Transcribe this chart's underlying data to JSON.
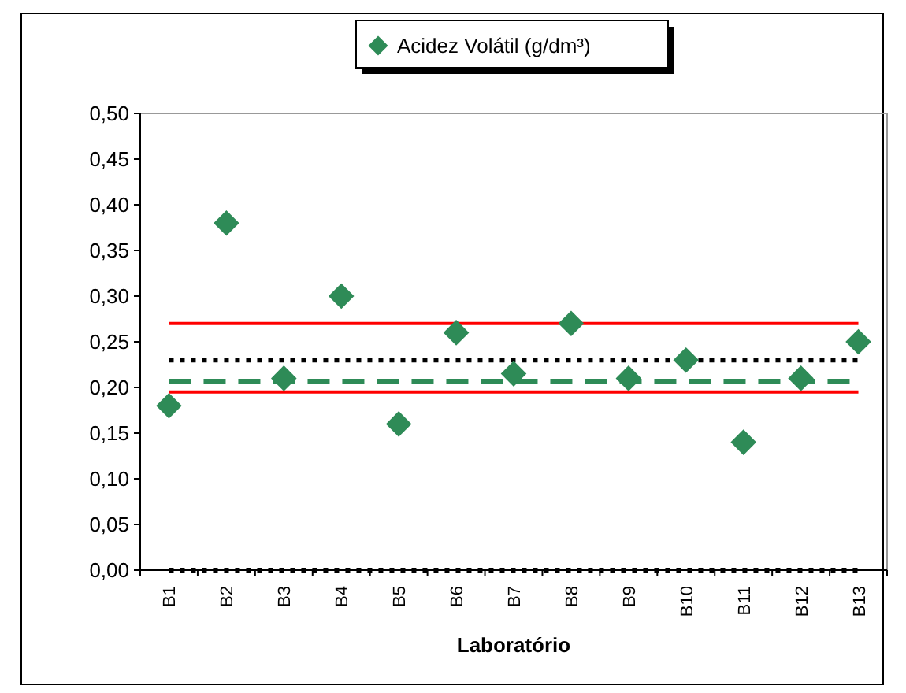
{
  "chart_data": {
    "type": "scatter",
    "xlabel": "Laboratório",
    "categories": [
      "B1",
      "B2",
      "B3",
      "B4",
      "B5",
      "B6",
      "B7",
      "B8",
      "B9",
      "B10",
      "B11",
      "B12",
      "B13"
    ],
    "series": [
      {
        "name": "Acidez Volátil (g/dm³)",
        "color": "#2e8b57",
        "values": [
          0.18,
          0.38,
          0.21,
          0.3,
          0.16,
          0.26,
          0.215,
          0.27,
          0.21,
          0.23,
          0.14,
          0.21,
          0.25
        ]
      }
    ],
    "ylim": [
      0,
      0.5
    ],
    "yticks": [
      {
        "value": 0,
        "label": "0,00"
      },
      {
        "value": 0.05,
        "label": "0,05"
      },
      {
        "value": 0.1,
        "label": "0,10"
      },
      {
        "value": 0.15,
        "label": "0,15"
      },
      {
        "value": 0.2,
        "label": "0,20"
      },
      {
        "value": 0.25,
        "label": "0,25"
      },
      {
        "value": 0.3,
        "label": "0,30"
      },
      {
        "value": 0.35,
        "label": "0,35"
      },
      {
        "value": 0.4,
        "label": "0,40"
      },
      {
        "value": 0.45,
        "label": "0,45"
      },
      {
        "value": 0.5,
        "label": "0,50"
      }
    ],
    "ref_lines": [
      {
        "axis": "y",
        "value": 0.27,
        "color": "#ff0000",
        "line_style": "solid"
      },
      {
        "axis": "y",
        "value": 0.195,
        "color": "#ff0000",
        "line_style": "solid"
      },
      {
        "axis": "y",
        "value": 0.23,
        "color": "#000000",
        "line_style": "dotted"
      },
      {
        "axis": "y",
        "value": 0.207,
        "color": "#2e8b57",
        "line_style": "dashed"
      },
      {
        "axis": "y",
        "value": 0,
        "color": "#000000",
        "line_style": "dotted"
      }
    ],
    "marker": "diamond",
    "legend": "top",
    "grid": false
  }
}
